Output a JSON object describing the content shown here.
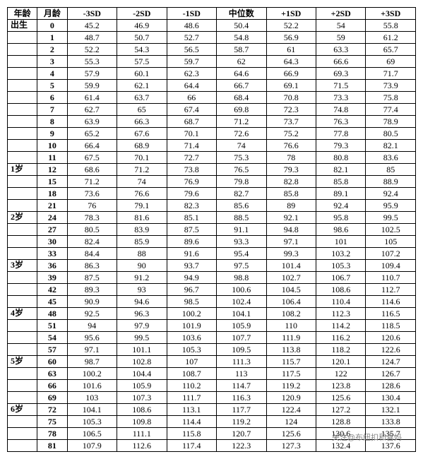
{
  "headers": {
    "age": "年龄",
    "month": "月龄",
    "m3sd": "-3SD",
    "m2sd": "-2SD",
    "m1sd": "-1SD",
    "median": "中位数",
    "p1sd": "+1SD",
    "p2sd": "+2SD",
    "p3sd": "+3SD"
  },
  "ageLabels": [
    "出生",
    "",
    "",
    "",
    "",
    "",
    "",
    "",
    "",
    "",
    "",
    "",
    "1岁",
    "",
    "",
    "",
    "2岁",
    "",
    "",
    "",
    "3岁",
    "",
    "",
    "",
    "4岁",
    "",
    "",
    "",
    "5岁",
    "",
    "",
    "",
    "6岁",
    "",
    "",
    ""
  ],
  "rows": [
    {
      "m": "0",
      "v": [
        "45.2",
        "46.9",
        "48.6",
        "50.4",
        "52.2",
        "54",
        "55.8"
      ]
    },
    {
      "m": "1",
      "v": [
        "48.7",
        "50.7",
        "52.7",
        "54.8",
        "56.9",
        "59",
        "61.2"
      ]
    },
    {
      "m": "2",
      "v": [
        "52.2",
        "54.3",
        "56.5",
        "58.7",
        "61",
        "63.3",
        "65.7"
      ]
    },
    {
      "m": "3",
      "v": [
        "55.3",
        "57.5",
        "59.7",
        "62",
        "64.3",
        "66.6",
        "69"
      ]
    },
    {
      "m": "4",
      "v": [
        "57.9",
        "60.1",
        "62.3",
        "64.6",
        "66.9",
        "69.3",
        "71.7"
      ]
    },
    {
      "m": "5",
      "v": [
        "59.9",
        "62.1",
        "64.4",
        "66.7",
        "69.1",
        "71.5",
        "73.9"
      ]
    },
    {
      "m": "6",
      "v": [
        "61.4",
        "63.7",
        "66",
        "68.4",
        "70.8",
        "73.3",
        "75.8"
      ]
    },
    {
      "m": "7",
      "v": [
        "62.7",
        "65",
        "67.4",
        "69.8",
        "72.3",
        "74.8",
        "77.4"
      ]
    },
    {
      "m": "8",
      "v": [
        "63.9",
        "66.3",
        "68.7",
        "71.2",
        "73.7",
        "76.3",
        "78.9"
      ]
    },
    {
      "m": "9",
      "v": [
        "65.2",
        "67.6",
        "70.1",
        "72.6",
        "75.2",
        "77.8",
        "80.5"
      ]
    },
    {
      "m": "10",
      "v": [
        "66.4",
        "68.9",
        "71.4",
        "74",
        "76.6",
        "79.3",
        "82.1"
      ]
    },
    {
      "m": "11",
      "v": [
        "67.5",
        "70.1",
        "72.7",
        "75.3",
        "78",
        "80.8",
        "83.6"
      ]
    },
    {
      "m": "12",
      "v": [
        "68.6",
        "71.2",
        "73.8",
        "76.5",
        "79.3",
        "82.1",
        "85"
      ]
    },
    {
      "m": "15",
      "v": [
        "71.2",
        "74",
        "76.9",
        "79.8",
        "82.8",
        "85.8",
        "88.9"
      ]
    },
    {
      "m": "18",
      "v": [
        "73.6",
        "76.6",
        "79.6",
        "82.7",
        "85.8",
        "89.1",
        "92.4"
      ]
    },
    {
      "m": "21",
      "v": [
        "76",
        "79.1",
        "82.3",
        "85.6",
        "89",
        "92.4",
        "95.9"
      ]
    },
    {
      "m": "24",
      "v": [
        "78.3",
        "81.6",
        "85.1",
        "88.5",
        "92.1",
        "95.8",
        "99.5"
      ]
    },
    {
      "m": "27",
      "v": [
        "80.5",
        "83.9",
        "87.5",
        "91.1",
        "94.8",
        "98.6",
        "102.5"
      ]
    },
    {
      "m": "30",
      "v": [
        "82.4",
        "85.9",
        "89.6",
        "93.3",
        "97.1",
        "101",
        "105"
      ]
    },
    {
      "m": "33",
      "v": [
        "84.4",
        "88",
        "91.6",
        "95.4",
        "99.3",
        "103.2",
        "107.2"
      ]
    },
    {
      "m": "36",
      "v": [
        "86.3",
        "90",
        "93.7",
        "97.5",
        "101.4",
        "105.3",
        "109.4"
      ]
    },
    {
      "m": "39",
      "v": [
        "87.5",
        "91.2",
        "94.9",
        "98.8",
        "102.7",
        "106.7",
        "110.7"
      ]
    },
    {
      "m": "42",
      "v": [
        "89.3",
        "93",
        "96.7",
        "100.6",
        "104.5",
        "108.6",
        "112.7"
      ]
    },
    {
      "m": "45",
      "v": [
        "90.9",
        "94.6",
        "98.5",
        "102.4",
        "106.4",
        "110.4",
        "114.6"
      ]
    },
    {
      "m": "48",
      "v": [
        "92.5",
        "96.3",
        "100.2",
        "104.1",
        "108.2",
        "112.3",
        "116.5"
      ]
    },
    {
      "m": "51",
      "v": [
        "94",
        "97.9",
        "101.9",
        "105.9",
        "110",
        "114.2",
        "118.5"
      ]
    },
    {
      "m": "54",
      "v": [
        "95.6",
        "99.5",
        "103.6",
        "107.7",
        "111.9",
        "116.2",
        "120.6"
      ]
    },
    {
      "m": "57",
      "v": [
        "97.1",
        "101.1",
        "105.3",
        "109.5",
        "113.8",
        "118.2",
        "122.6"
      ]
    },
    {
      "m": "60",
      "v": [
        "98.7",
        "102.8",
        "107",
        "111.3",
        "115.7",
        "120.1",
        "124.7"
      ]
    },
    {
      "m": "63",
      "v": [
        "100.2",
        "104.4",
        "108.7",
        "113",
        "117.5",
        "122",
        "126.7"
      ]
    },
    {
      "m": "66",
      "v": [
        "101.6",
        "105.9",
        "110.2",
        "114.7",
        "119.2",
        "123.8",
        "128.6"
      ]
    },
    {
      "m": "69",
      "v": [
        "103",
        "107.3",
        "111.7",
        "116.3",
        "120.9",
        "125.6",
        "130.4"
      ]
    },
    {
      "m": "72",
      "v": [
        "104.1",
        "108.6",
        "113.1",
        "117.7",
        "122.4",
        "127.2",
        "132.1"
      ]
    },
    {
      "m": "75",
      "v": [
        "105.3",
        "109.8",
        "114.4",
        "119.2",
        "124",
        "128.8",
        "133.8"
      ]
    },
    {
      "m": "78",
      "v": [
        "106.5",
        "111.1",
        "115.8",
        "120.7",
        "125.6",
        "130.6",
        "135.7"
      ]
    },
    {
      "m": "81",
      "v": [
        "107.9",
        "112.6",
        "117.4",
        "122.3",
        "127.3",
        "132.4",
        "137.6"
      ]
    }
  ],
  "watermark": "关注@布纽扣和喜妈"
}
